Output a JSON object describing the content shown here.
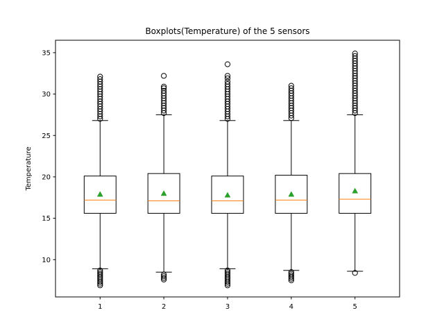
{
  "chart_data": {
    "type": "boxplot",
    "title": "Boxplots(Temperature) of the 5 sensors",
    "xlabel": "",
    "ylabel": "Temperature",
    "categories": [
      "1",
      "2",
      "3",
      "4",
      "5"
    ],
    "ylim": [
      5.5,
      36.5
    ],
    "yticks": [
      10,
      15,
      20,
      25,
      30,
      35
    ],
    "grid": false,
    "colors": {
      "box": "#000000",
      "median": "#ff7f0e",
      "mean": "#2ca02c",
      "outlier": "#000000"
    },
    "boxes": [
      {
        "label": "1",
        "whislo": 8.9,
        "q1": 15.6,
        "med": 17.2,
        "mean": 17.9,
        "q3": 20.1,
        "whishi": 26.8,
        "fliers": [
          8.7,
          8.5,
          8.3,
          8.1,
          7.9,
          7.7,
          7.5,
          7.3,
          7.1,
          6.9,
          27.0,
          27.3,
          27.6,
          27.9,
          28.2,
          28.5,
          28.8,
          29.1,
          29.4,
          29.7,
          30.0,
          30.3,
          30.6,
          30.9,
          31.2,
          31.5,
          31.8,
          32.1
        ]
      },
      {
        "label": "2",
        "whislo": 8.5,
        "q1": 15.6,
        "med": 17.1,
        "mean": 18.0,
        "q3": 20.4,
        "whishi": 27.5,
        "fliers": [
          8.2,
          8.0,
          7.8,
          7.6,
          27.7,
          28.0,
          28.3,
          28.6,
          28.9,
          29.2,
          29.5,
          29.8,
          30.1,
          30.4,
          30.7,
          30.9,
          32.2
        ]
      },
      {
        "label": "3",
        "whislo": 8.9,
        "q1": 15.6,
        "med": 17.1,
        "mean": 17.8,
        "q3": 20.1,
        "whishi": 26.8,
        "fliers": [
          8.7,
          8.5,
          8.3,
          8.1,
          7.9,
          7.7,
          7.5,
          7.3,
          7.1,
          6.9,
          27.0,
          27.3,
          27.6,
          27.9,
          28.2,
          28.5,
          28.8,
          29.1,
          29.4,
          29.7,
          30.0,
          30.3,
          30.6,
          30.9,
          31.2,
          31.5,
          31.9,
          32.2,
          33.6
        ]
      },
      {
        "label": "4",
        "whislo": 8.7,
        "q1": 15.6,
        "med": 17.2,
        "mean": 17.9,
        "q3": 20.2,
        "whishi": 26.8,
        "fliers": [
          8.5,
          8.3,
          8.1,
          7.9,
          7.7,
          7.5,
          27.1,
          27.4,
          27.7,
          28.0,
          28.3,
          28.6,
          28.9,
          29.2,
          29.5,
          29.8,
          30.1,
          30.4,
          30.7,
          31.0
        ]
      },
      {
        "label": "5",
        "whislo": 8.6,
        "q1": 15.6,
        "med": 17.3,
        "mean": 18.3,
        "q3": 20.4,
        "whishi": 27.5,
        "fliers": [
          8.4,
          27.7,
          28.0,
          28.3,
          28.6,
          28.9,
          29.2,
          29.5,
          29.8,
          30.1,
          30.4,
          30.7,
          31.0,
          31.3,
          31.6,
          31.9,
          32.2,
          32.5,
          32.8,
          33.1,
          33.4,
          33.7,
          34.0,
          34.3,
          34.6,
          34.9
        ]
      }
    ]
  }
}
